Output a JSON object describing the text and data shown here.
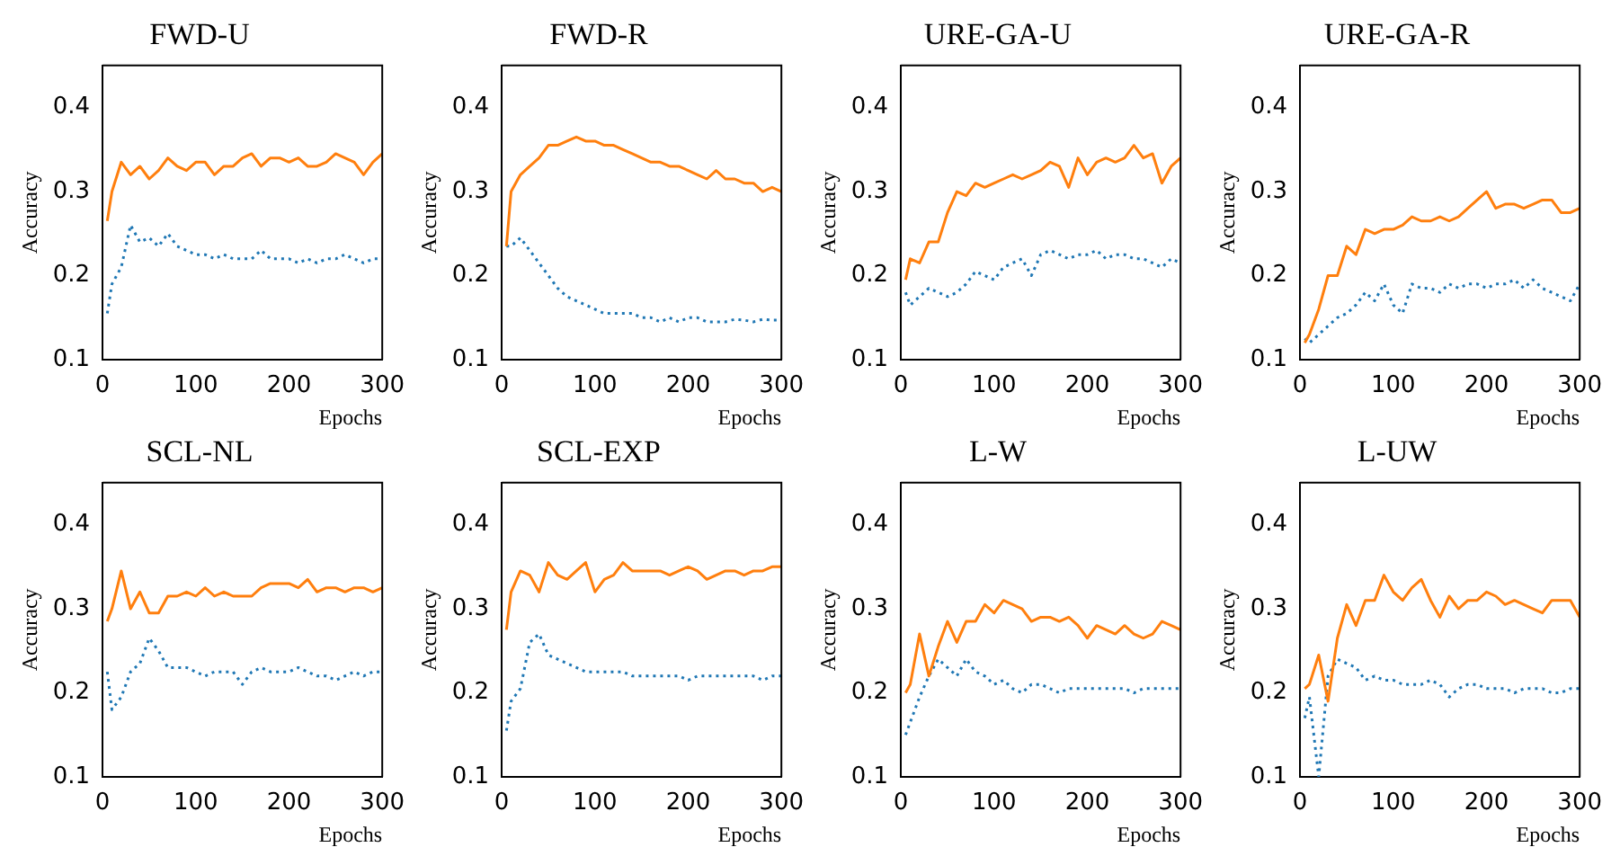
{
  "chart_data": [
    {
      "type": "line",
      "title": "FWD-U",
      "xlabel": "Epochs",
      "ylabel": "Accuracy",
      "xlim": [
        0,
        300
      ],
      "xticks": [
        0,
        100,
        200,
        300
      ],
      "ylim": [
        0.1,
        0.45
      ],
      "yticks": [
        0.1,
        0.2,
        0.3,
        0.4
      ],
      "grid": false,
      "legend": false,
      "x": [
        5,
        10,
        20,
        30,
        40,
        50,
        60,
        70,
        80,
        90,
        100,
        110,
        120,
        130,
        140,
        150,
        160,
        170,
        180,
        190,
        200,
        210,
        220,
        230,
        240,
        250,
        260,
        270,
        280,
        290,
        300
      ],
      "series": [
        {
          "color": "#ff7f0e",
          "line_style": "solid",
          "values": [
            0.265,
            0.3,
            0.335,
            0.32,
            0.33,
            0.315,
            0.325,
            0.34,
            0.33,
            0.325,
            0.335,
            0.335,
            0.32,
            0.33,
            0.33,
            0.34,
            0.345,
            0.33,
            0.34,
            0.34,
            0.335,
            0.34,
            0.33,
            0.33,
            0.335,
            0.345,
            0.34,
            0.335,
            0.32,
            0.335,
            0.345
          ]
        },
        {
          "color": "#1f77b4",
          "line_style": "dotted",
          "values": [
            0.155,
            0.19,
            0.21,
            0.26,
            0.24,
            0.245,
            0.235,
            0.25,
            0.235,
            0.23,
            0.225,
            0.225,
            0.22,
            0.225,
            0.22,
            0.22,
            0.22,
            0.23,
            0.22,
            0.22,
            0.22,
            0.215,
            0.22,
            0.215,
            0.22,
            0.22,
            0.225,
            0.22,
            0.215,
            0.22,
            0.22
          ]
        }
      ]
    },
    {
      "type": "line",
      "title": "FWD-R",
      "xlabel": "Epochs",
      "ylabel": "Accuracy",
      "xlim": [
        0,
        300
      ],
      "xticks": [
        0,
        100,
        200,
        300
      ],
      "ylim": [
        0.1,
        0.45
      ],
      "yticks": [
        0.1,
        0.2,
        0.3,
        0.4
      ],
      "grid": false,
      "legend": false,
      "x": [
        5,
        10,
        20,
        30,
        40,
        50,
        60,
        70,
        80,
        90,
        100,
        110,
        120,
        130,
        140,
        150,
        160,
        170,
        180,
        190,
        200,
        210,
        220,
        230,
        240,
        250,
        260,
        270,
        280,
        290,
        300
      ],
      "series": [
        {
          "color": "#ff7f0e",
          "line_style": "solid",
          "values": [
            0.235,
            0.3,
            0.32,
            0.33,
            0.34,
            0.355,
            0.355,
            0.36,
            0.365,
            0.36,
            0.36,
            0.355,
            0.355,
            0.35,
            0.345,
            0.34,
            0.335,
            0.335,
            0.33,
            0.33,
            0.325,
            0.32,
            0.315,
            0.325,
            0.315,
            0.315,
            0.31,
            0.31,
            0.3,
            0.305,
            0.3
          ]
        },
        {
          "color": "#1f77b4",
          "line_style": "dotted",
          "values": [
            0.235,
            0.235,
            0.245,
            0.23,
            0.215,
            0.2,
            0.185,
            0.175,
            0.17,
            0.165,
            0.16,
            0.155,
            0.155,
            0.155,
            0.155,
            0.15,
            0.15,
            0.145,
            0.15,
            0.145,
            0.15,
            0.15,
            0.145,
            0.145,
            0.145,
            0.148,
            0.147,
            0.145,
            0.148,
            0.147,
            0.147
          ]
        }
      ]
    },
    {
      "type": "line",
      "title": "URE-GA-U",
      "xlabel": "Epochs",
      "ylabel": "Accuracy",
      "xlim": [
        0,
        300
      ],
      "xticks": [
        0,
        100,
        200,
        300
      ],
      "ylim": [
        0.1,
        0.45
      ],
      "yticks": [
        0.1,
        0.2,
        0.3,
        0.4
      ],
      "grid": false,
      "legend": false,
      "x": [
        5,
        10,
        20,
        30,
        40,
        50,
        60,
        70,
        80,
        90,
        100,
        110,
        120,
        130,
        140,
        150,
        160,
        170,
        180,
        190,
        200,
        210,
        220,
        230,
        240,
        250,
        260,
        270,
        280,
        290,
        300
      ],
      "series": [
        {
          "color": "#ff7f0e",
          "line_style": "solid",
          "values": [
            0.195,
            0.22,
            0.215,
            0.24,
            0.24,
            0.275,
            0.3,
            0.295,
            0.31,
            0.305,
            0.31,
            0.315,
            0.32,
            0.315,
            0.32,
            0.325,
            0.335,
            0.33,
            0.305,
            0.34,
            0.32,
            0.335,
            0.34,
            0.335,
            0.34,
            0.355,
            0.34,
            0.345,
            0.31,
            0.33,
            0.34
          ]
        },
        {
          "color": "#1f77b4",
          "line_style": "dotted",
          "values": [
            0.18,
            0.165,
            0.175,
            0.185,
            0.18,
            0.175,
            0.18,
            0.19,
            0.205,
            0.2,
            0.195,
            0.21,
            0.215,
            0.22,
            0.2,
            0.225,
            0.23,
            0.225,
            0.22,
            0.225,
            0.225,
            0.23,
            0.22,
            0.225,
            0.225,
            0.22,
            0.22,
            0.215,
            0.21,
            0.22,
            0.215
          ]
        }
      ]
    },
    {
      "type": "line",
      "title": "URE-GA-R",
      "xlabel": "Epochs",
      "ylabel": "Accuracy",
      "xlim": [
        0,
        300
      ],
      "xticks": [
        0,
        100,
        200,
        300
      ],
      "ylim": [
        0.1,
        0.45
      ],
      "yticks": [
        0.1,
        0.2,
        0.3,
        0.4
      ],
      "grid": false,
      "legend": false,
      "x": [
        5,
        10,
        20,
        30,
        40,
        50,
        60,
        70,
        80,
        90,
        100,
        110,
        120,
        130,
        140,
        150,
        160,
        170,
        180,
        190,
        200,
        210,
        220,
        230,
        240,
        250,
        260,
        270,
        280,
        290,
        300
      ],
      "series": [
        {
          "color": "#ff7f0e",
          "line_style": "solid",
          "values": [
            0.12,
            0.13,
            0.16,
            0.2,
            0.2,
            0.235,
            0.225,
            0.255,
            0.25,
            0.255,
            0.255,
            0.26,
            0.27,
            0.265,
            0.265,
            0.27,
            0.265,
            0.27,
            0.28,
            0.29,
            0.3,
            0.28,
            0.285,
            0.285,
            0.28,
            0.285,
            0.29,
            0.29,
            0.275,
            0.275,
            0.28
          ]
        },
        {
          "color": "#1f77b4",
          "line_style": "dotted",
          "values": [
            0.125,
            0.12,
            0.13,
            0.14,
            0.15,
            0.155,
            0.165,
            0.18,
            0.17,
            0.19,
            0.165,
            0.155,
            0.19,
            0.185,
            0.185,
            0.18,
            0.19,
            0.185,
            0.19,
            0.19,
            0.185,
            0.19,
            0.19,
            0.195,
            0.185,
            0.195,
            0.185,
            0.18,
            0.175,
            0.17,
            0.19
          ]
        }
      ]
    },
    {
      "type": "line",
      "title": "SCL-NL",
      "xlabel": "Epochs",
      "ylabel": "Accuracy",
      "xlim": [
        0,
        300
      ],
      "xticks": [
        0,
        100,
        200,
        300
      ],
      "ylim": [
        0.1,
        0.45
      ],
      "yticks": [
        0.1,
        0.2,
        0.3,
        0.4
      ],
      "grid": false,
      "legend": false,
      "x": [
        5,
        10,
        20,
        30,
        40,
        50,
        60,
        70,
        80,
        90,
        100,
        110,
        120,
        130,
        140,
        150,
        160,
        170,
        180,
        190,
        200,
        210,
        220,
        230,
        240,
        250,
        260,
        270,
        280,
        290,
        300
      ],
      "series": [
        {
          "color": "#ff7f0e",
          "line_style": "solid",
          "values": [
            0.285,
            0.3,
            0.345,
            0.3,
            0.32,
            0.295,
            0.295,
            0.315,
            0.315,
            0.32,
            0.315,
            0.325,
            0.315,
            0.32,
            0.315,
            0.315,
            0.315,
            0.325,
            0.33,
            0.33,
            0.33,
            0.325,
            0.335,
            0.32,
            0.325,
            0.325,
            0.32,
            0.325,
            0.325,
            0.32,
            0.325
          ]
        },
        {
          "color": "#1f77b4",
          "line_style": "dotted",
          "values": [
            0.225,
            0.18,
            0.195,
            0.225,
            0.235,
            0.265,
            0.25,
            0.23,
            0.23,
            0.23,
            0.225,
            0.22,
            0.225,
            0.225,
            0.225,
            0.21,
            0.225,
            0.23,
            0.225,
            0.225,
            0.225,
            0.23,
            0.225,
            0.22,
            0.22,
            0.215,
            0.22,
            0.225,
            0.22,
            0.225,
            0.225
          ]
        }
      ]
    },
    {
      "type": "line",
      "title": "SCL-EXP",
      "xlabel": "Epochs",
      "ylabel": "Accuracy",
      "xlim": [
        0,
        300
      ],
      "xticks": [
        0,
        100,
        200,
        300
      ],
      "ylim": [
        0.1,
        0.45
      ],
      "yticks": [
        0.1,
        0.2,
        0.3,
        0.4
      ],
      "grid": false,
      "legend": false,
      "x": [
        5,
        10,
        20,
        30,
        40,
        50,
        60,
        70,
        80,
        90,
        100,
        110,
        120,
        130,
        140,
        150,
        160,
        170,
        180,
        190,
        200,
        210,
        220,
        230,
        240,
        250,
        260,
        270,
        280,
        290,
        300
      ],
      "series": [
        {
          "color": "#ff7f0e",
          "line_style": "solid",
          "values": [
            0.275,
            0.32,
            0.345,
            0.34,
            0.32,
            0.355,
            0.34,
            0.335,
            0.345,
            0.355,
            0.32,
            0.335,
            0.34,
            0.355,
            0.345,
            0.345,
            0.345,
            0.345,
            0.34,
            0.345,
            0.35,
            0.345,
            0.335,
            0.34,
            0.345,
            0.345,
            0.34,
            0.345,
            0.345,
            0.35,
            0.35
          ]
        },
        {
          "color": "#1f77b4",
          "line_style": "dotted",
          "values": [
            0.155,
            0.19,
            0.205,
            0.26,
            0.27,
            0.245,
            0.24,
            0.235,
            0.23,
            0.225,
            0.225,
            0.225,
            0.225,
            0.225,
            0.22,
            0.22,
            0.22,
            0.22,
            0.22,
            0.22,
            0.215,
            0.22,
            0.22,
            0.22,
            0.22,
            0.22,
            0.22,
            0.22,
            0.215,
            0.22,
            0.22
          ]
        }
      ]
    },
    {
      "type": "line",
      "title": "L-W",
      "xlabel": "Epochs",
      "ylabel": "Accuracy",
      "xlim": [
        0,
        300
      ],
      "xticks": [
        0,
        100,
        200,
        300
      ],
      "ylim": [
        0.1,
        0.45
      ],
      "yticks": [
        0.1,
        0.2,
        0.3,
        0.4
      ],
      "grid": false,
      "legend": false,
      "x": [
        5,
        10,
        20,
        30,
        40,
        50,
        60,
        70,
        80,
        90,
        100,
        110,
        120,
        130,
        140,
        150,
        160,
        170,
        180,
        190,
        200,
        210,
        220,
        230,
        240,
        250,
        260,
        270,
        280,
        290,
        300
      ],
      "series": [
        {
          "color": "#ff7f0e",
          "line_style": "solid",
          "values": [
            0.2,
            0.21,
            0.27,
            0.22,
            0.255,
            0.285,
            0.26,
            0.285,
            0.285,
            0.305,
            0.295,
            0.31,
            0.305,
            0.3,
            0.285,
            0.29,
            0.29,
            0.285,
            0.29,
            0.28,
            0.265,
            0.28,
            0.275,
            0.27,
            0.28,
            0.27,
            0.265,
            0.27,
            0.285,
            0.28,
            0.275
          ]
        },
        {
          "color": "#1f77b4",
          "line_style": "dotted",
          "values": [
            0.15,
            0.165,
            0.195,
            0.22,
            0.24,
            0.23,
            0.22,
            0.24,
            0.225,
            0.22,
            0.21,
            0.215,
            0.205,
            0.2,
            0.21,
            0.21,
            0.205,
            0.2,
            0.205,
            0.205,
            0.205,
            0.205,
            0.205,
            0.205,
            0.205,
            0.2,
            0.205,
            0.205,
            0.205,
            0.205,
            0.205
          ]
        }
      ]
    },
    {
      "type": "line",
      "title": "L-UW",
      "xlabel": "Epochs",
      "ylabel": "Accuracy",
      "xlim": [
        0,
        300
      ],
      "xticks": [
        0,
        100,
        200,
        300
      ],
      "ylim": [
        0.1,
        0.45
      ],
      "yticks": [
        0.1,
        0.2,
        0.3,
        0.4
      ],
      "grid": false,
      "legend": false,
      "x": [
        5,
        10,
        20,
        30,
        40,
        50,
        60,
        70,
        80,
        90,
        100,
        110,
        120,
        130,
        140,
        150,
        160,
        170,
        180,
        190,
        200,
        210,
        220,
        230,
        240,
        250,
        260,
        270,
        280,
        290,
        300
      ],
      "series": [
        {
          "color": "#ff7f0e",
          "line_style": "solid",
          "values": [
            0.205,
            0.21,
            0.245,
            0.19,
            0.265,
            0.305,
            0.28,
            0.31,
            0.31,
            0.34,
            0.32,
            0.31,
            0.325,
            0.335,
            0.31,
            0.29,
            0.315,
            0.3,
            0.31,
            0.31,
            0.32,
            0.315,
            0.305,
            0.31,
            0.305,
            0.3,
            0.295,
            0.31,
            0.31,
            0.31,
            0.29
          ]
        },
        {
          "color": "#1f77b4",
          "line_style": "dotted",
          "values": [
            0.17,
            0.195,
            0.1,
            0.22,
            0.24,
            0.235,
            0.23,
            0.215,
            0.22,
            0.215,
            0.215,
            0.21,
            0.21,
            0.21,
            0.215,
            0.21,
            0.195,
            0.205,
            0.21,
            0.21,
            0.205,
            0.205,
            0.205,
            0.2,
            0.205,
            0.205,
            0.205,
            0.2,
            0.2,
            0.205,
            0.205
          ]
        }
      ]
    }
  ]
}
